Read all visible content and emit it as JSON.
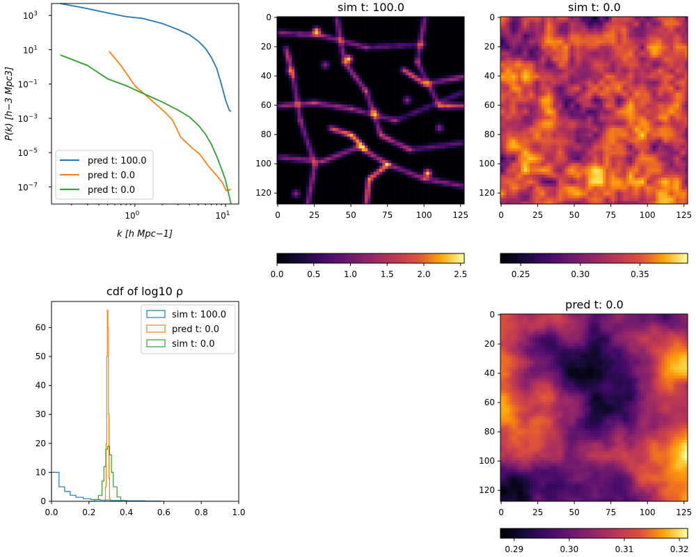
{
  "colors": {
    "c0": "#1f77b4",
    "c1": "#ff7f0e",
    "c2": "#2ca02c",
    "colormap": "inferno"
  },
  "chart_data": [
    {
      "id": "pk",
      "type": "line",
      "xscale": "log",
      "yscale": "log",
      "xlabel": "k [h Mpc−1]",
      "ylabel": "P(k) [h−3 Mpc3]",
      "xlim": [
        0.12,
        14
      ],
      "ylim": [
        1e-08,
        5000
      ],
      "xticks": [
        {
          "v": 1,
          "b": "10",
          "e": "0"
        },
        {
          "v": 10,
          "b": "10",
          "e": "1"
        }
      ],
      "yticks": [
        {
          "v": 1000,
          "b": "10",
          "e": "3"
        },
        {
          "v": 10,
          "b": "10",
          "e": "1"
        },
        {
          "v": 0.1,
          "b": "10",
          "e": "−1"
        },
        {
          "v": 0.001,
          "b": "10",
          "e": "−3"
        },
        {
          "v": 1e-05,
          "b": "10",
          "e": "−5"
        },
        {
          "v": 1e-07,
          "b": "10",
          "e": "−7"
        }
      ],
      "legend_position": "lower-left",
      "series": [
        {
          "name": "pred t: 100.0",
          "color": "#1f77b4",
          "x": [
            0.15,
            0.3,
            0.5,
            0.8,
            1.2,
            2,
            3,
            4,
            5,
            6,
            7,
            8,
            9,
            10,
            11,
            11.5
          ],
          "y": [
            5000,
            2500,
            1400,
            850,
            680,
            340,
            150,
            75,
            32,
            12,
            3.5,
            0.8,
            0.1,
            0.012,
            0.003,
            0.0025
          ]
        },
        {
          "name": "pred t: 0.0",
          "color": "#ff7f0e",
          "x": [
            0.52,
            0.7,
            1.0,
            1.5,
            2.2,
            2.6,
            3.2,
            4.2,
            5.2,
            6.2,
            6.8,
            8,
            9.2,
            10.2,
            11.5
          ],
          "y": [
            8,
            1.2,
            0.08,
            0.012,
            0.002,
            0.0008,
            8e-05,
            2e-05,
            8e-06,
            2.2e-06,
            1.2e-06,
            4.5e-07,
            1.8e-07,
            6e-08,
            7e-08
          ]
        },
        {
          "name": "pred t: 0.0",
          "color": "#2ca02c",
          "x": [
            0.15,
            0.3,
            0.5,
            0.8,
            1.2,
            2,
            3,
            4,
            5,
            6,
            7,
            8,
            9,
            10,
            11.5
          ],
          "y": [
            5,
            1.2,
            0.2,
            0.08,
            0.03,
            0.009,
            0.003,
            0.0012,
            0.0004,
            0.00012,
            3e-05,
            6e-06,
            1.2e-06,
            2.5e-07,
            1e-08
          ]
        }
      ]
    },
    {
      "id": "sim100",
      "type": "heatmap",
      "title": "sim t: 100.0",
      "xticks": [
        0,
        25,
        50,
        75,
        100,
        125
      ],
      "yticks": [
        0,
        20,
        40,
        60,
        80,
        100,
        120
      ],
      "shape": [
        128,
        128
      ],
      "colorbar": {
        "min": 0.0,
        "max": 2.55,
        "ticks": [
          "0.0",
          "0.5",
          "1.0",
          "1.5",
          "2.0",
          "2.5"
        ],
        "tick_values": [
          0,
          0.5,
          1.0,
          1.5,
          2.0,
          2.5
        ]
      }
    },
    {
      "id": "sim0",
      "type": "heatmap",
      "title": "sim t: 0.0",
      "xticks": [
        0,
        25,
        50,
        75,
        100,
        125
      ],
      "yticks": [
        0,
        20,
        40,
        60,
        80,
        100,
        120
      ],
      "shape": [
        128,
        128
      ],
      "colorbar": {
        "min": 0.233,
        "max": 0.39,
        "ticks": [
          "0.25",
          "0.30",
          "0.35"
        ],
        "tick_values": [
          0.25,
          0.3,
          0.35
        ]
      }
    },
    {
      "id": "cdf",
      "type": "histogram",
      "title": "cdf of log10 ρ",
      "xlim": [
        0,
        1
      ],
      "ylim": [
        0,
        69
      ],
      "xticks": [
        "0.0",
        "0.2",
        "0.4",
        "0.6",
        "0.8",
        "1.0"
      ],
      "xtick_values": [
        0,
        0.2,
        0.4,
        0.6,
        0.8,
        1.0
      ],
      "yticks": [
        0,
        10,
        20,
        30,
        40,
        50,
        60
      ],
      "legend_position": "upper-right",
      "series": [
        {
          "name": "sim t: 100.0",
          "color": "#1f77b4",
          "style": "step",
          "x": [
            0,
            0.04,
            0.07,
            0.1,
            0.13,
            0.17,
            0.21,
            0.26,
            0.32,
            0.4,
            0.5,
            0.58,
            0.6
          ],
          "y": [
            10,
            5,
            3.4,
            2.1,
            1.4,
            0.9,
            0.6,
            0.4,
            0.3,
            0.2,
            0.1,
            0.05,
            0
          ]
        },
        {
          "name": "pred t: 0.0",
          "color": "#ff7f0e",
          "style": "step",
          "x": [
            0.28,
            0.288,
            0.292,
            0.295,
            0.298,
            0.301,
            0.304,
            0.307,
            0.31,
            0.313,
            0.316
          ],
          "y": [
            0,
            5,
            20,
            50,
            66,
            60,
            30,
            8,
            1,
            0,
            0
          ]
        },
        {
          "name": "sim t: 0.0",
          "color": "#2ca02c",
          "style": "step",
          "x": [
            0.2,
            0.23,
            0.25,
            0.27,
            0.28,
            0.29,
            0.3,
            0.31,
            0.32,
            0.33,
            0.35,
            0.37,
            0.39
          ],
          "y": [
            0,
            0.5,
            2,
            7,
            12,
            18,
            19,
            16,
            10,
            5,
            1.5,
            0.3,
            0
          ]
        }
      ]
    },
    {
      "id": "pred0",
      "type": "heatmap",
      "title": "pred t: 0.0",
      "xticks": [
        0,
        25,
        50,
        75,
        100,
        125
      ],
      "yticks": [
        0,
        20,
        40,
        60,
        80,
        100,
        120
      ],
      "shape": [
        128,
        128
      ],
      "colorbar": {
        "min": 0.2875,
        "max": 0.3215,
        "ticks": [
          "0.29",
          "0.30",
          "0.31",
          "0.32"
        ],
        "tick_values": [
          0.29,
          0.3,
          0.31,
          0.32
        ]
      }
    }
  ]
}
